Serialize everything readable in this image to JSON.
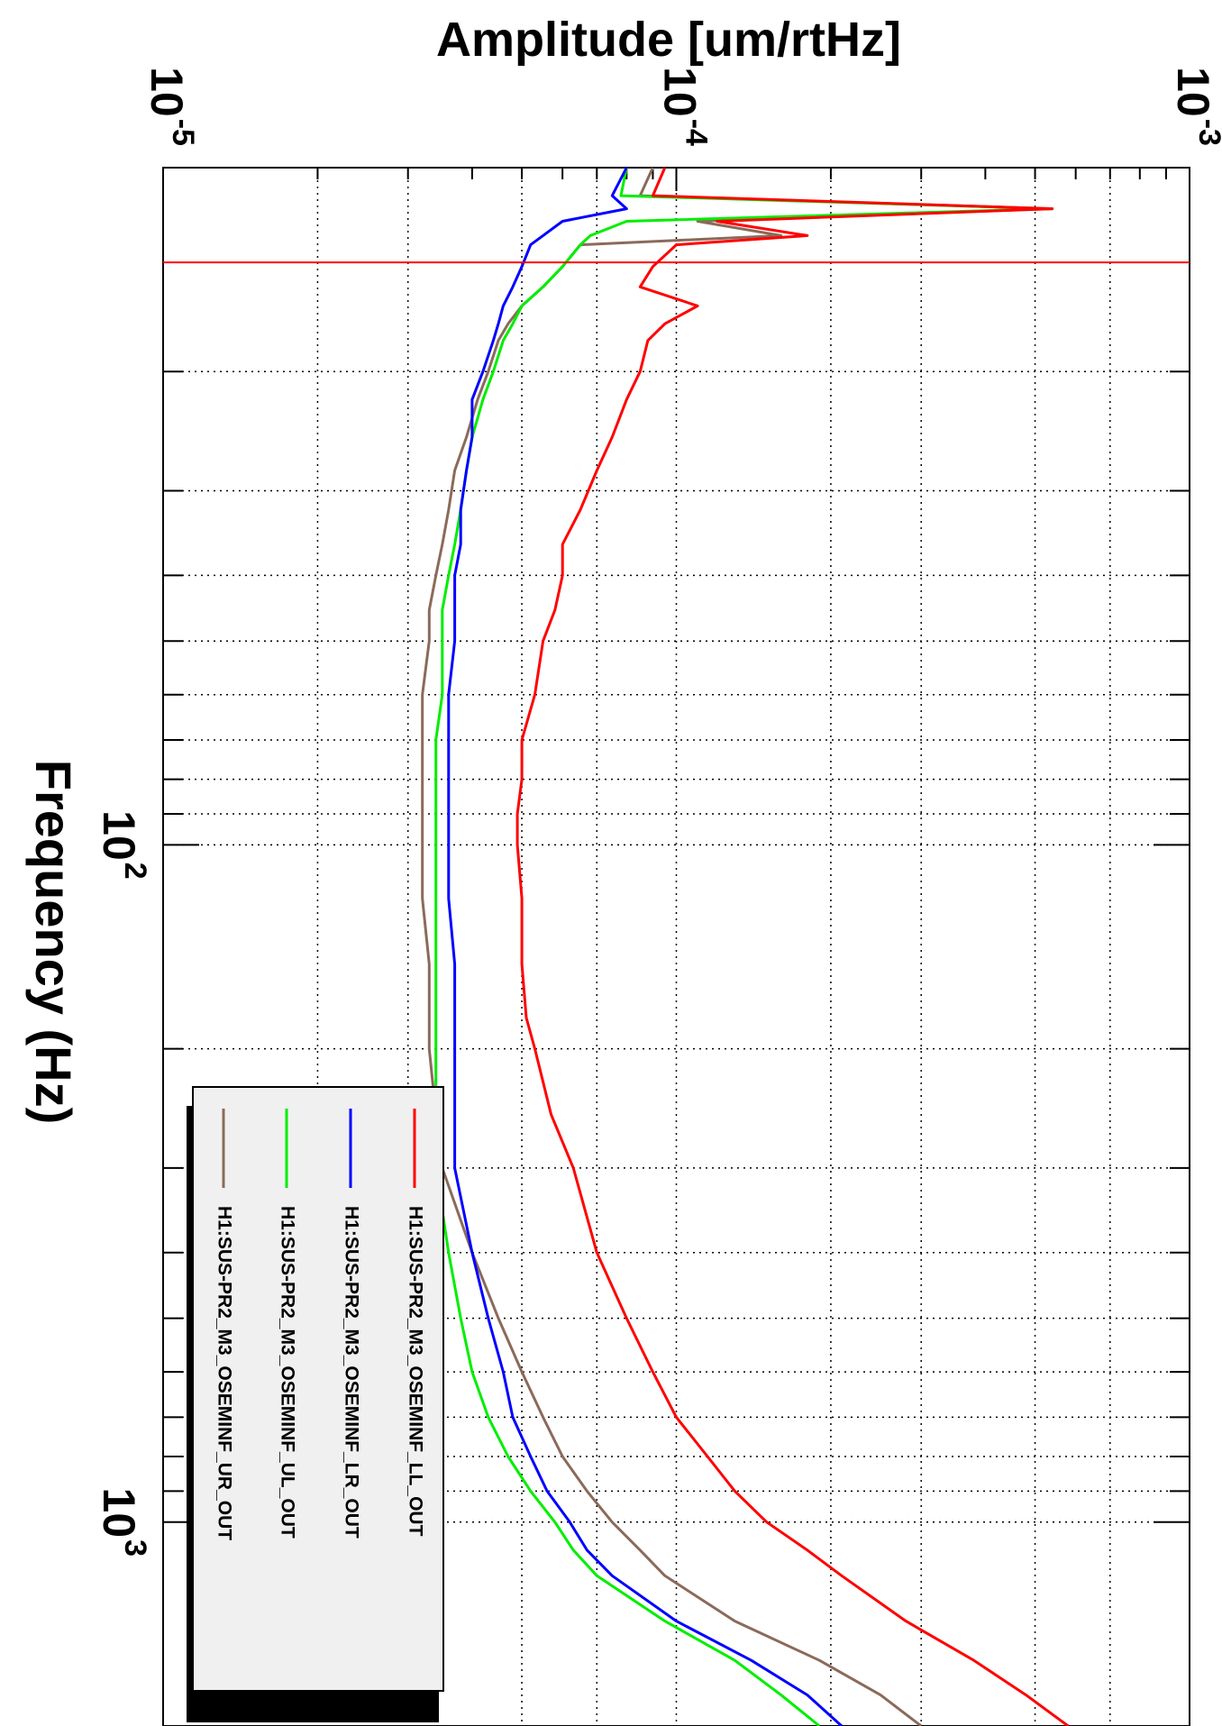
{
  "chart_data": {
    "type": "line",
    "orientation": "rotated-90-clockwise",
    "xlabel": "Frequency (Hz)",
    "ylabel": "Amplitude [um/rtHz]",
    "xscale": "log",
    "yscale": "log",
    "xlim": [
      10,
      2000
    ],
    "ylim": [
      1e-05,
      0.001
    ],
    "grid": true,
    "legend_position": "bottom-right",
    "x_ticks": [
      {
        "value": 100,
        "base": "10",
        "exp": "2"
      },
      {
        "value": 1000,
        "base": "10",
        "exp": "3"
      }
    ],
    "y_ticks": [
      {
        "value": 1e-05,
        "base": "10",
        "exp": "-5"
      },
      {
        "value": 0.0001,
        "base": "10",
        "exp": "-4"
      },
      {
        "value": 0.001,
        "base": "10",
        "exp": "-3"
      }
    ],
    "marker_line": {
      "x": 13.8,
      "color": "#ff0000"
    },
    "series": [
      {
        "name": "H1:SUS-PR2_M3_OSEMINF_LL_OUT",
        "color": "#ff0000",
        "x": [
          10,
          11,
          11.5,
          12,
          12.6,
          13,
          14,
          15,
          16,
          17,
          18,
          20,
          22,
          25,
          28,
          32,
          36,
          40,
          45,
          50,
          60,
          70,
          80,
          90,
          100,
          120,
          150,
          180,
          200,
          250,
          300,
          400,
          500,
          600,
          700,
          800,
          900,
          1000,
          1100,
          1200,
          1400,
          1600,
          1800,
          2000
        ],
        "y": [
          9.5e-05,
          9e-05,
          0.00054,
          0.00012,
          0.00018,
          0.0001,
          9e-05,
          8.5e-05,
          0.00011,
          9.5e-05,
          8.8e-05,
          8.5e-05,
          8e-05,
          7.5e-05,
          7e-05,
          6.5e-05,
          6e-05,
          6e-05,
          5.8e-05,
          5.5e-05,
          5.3e-05,
          5e-05,
          5e-05,
          4.9e-05,
          4.9e-05,
          5e-05,
          5e-05,
          5.1e-05,
          5.3e-05,
          5.7e-05,
          6.3e-05,
          7e-05,
          8e-05,
          9e-05,
          0.0001,
          0.000115,
          0.00013,
          0.00015,
          0.00018,
          0.00021,
          0.00028,
          0.00038,
          0.00048,
          0.00058
        ]
      },
      {
        "name": "H1:SUS-PR2_M3_OSEMINF_LR_OUT",
        "color": "#0000ff",
        "x": [
          10,
          11,
          11.5,
          12,
          12.6,
          13,
          14,
          15,
          16,
          17,
          18,
          20,
          22,
          25,
          28,
          32,
          36,
          40,
          45,
          50,
          60,
          70,
          80,
          90,
          100,
          120,
          150,
          180,
          200,
          250,
          300,
          400,
          500,
          600,
          700,
          800,
          900,
          1000,
          1100,
          1200,
          1400,
          1600,
          1800,
          2000
        ],
        "y": [
          8e-05,
          7.5e-05,
          8e-05,
          6e-05,
          5.5e-05,
          5.2e-05,
          5e-05,
          4.8e-05,
          4.6e-05,
          4.5e-05,
          4.4e-05,
          4.2e-05,
          4e-05,
          4e-05,
          3.9e-05,
          3.8e-05,
          3.8e-05,
          3.7e-05,
          3.7e-05,
          3.7e-05,
          3.6e-05,
          3.6e-05,
          3.6e-05,
          3.6e-05,
          3.6e-05,
          3.6e-05,
          3.7e-05,
          3.7e-05,
          3.7e-05,
          3.7e-05,
          3.7e-05,
          4e-05,
          4.3e-05,
          4.6e-05,
          4.8e-05,
          5.2e-05,
          5.6e-05,
          6.2e-05,
          6.7e-05,
          7.5e-05,
          0.0001,
          0.00014,
          0.00018,
          0.00021
        ]
      },
      {
        "name": "H1:SUS-PR2_M3_OSEMINF_UL_OUT",
        "color": "#00ee00",
        "x": [
          10,
          11,
          11.5,
          12,
          12.6,
          13,
          14,
          15,
          16,
          17,
          18,
          20,
          22,
          25,
          28,
          32,
          36,
          40,
          45,
          50,
          60,
          70,
          80,
          90,
          100,
          120,
          150,
          180,
          200,
          250,
          300,
          400,
          500,
          600,
          700,
          800,
          900,
          1000,
          1100,
          1200,
          1400,
          1600,
          1800,
          2000
        ],
        "y": [
          8e-05,
          7.8e-05,
          0.00054,
          8e-05,
          6.8e-05,
          6.5e-05,
          6e-05,
          5.5e-05,
          5e-05,
          4.8e-05,
          4.6e-05,
          4.4e-05,
          4.2e-05,
          4e-05,
          3.9e-05,
          3.8e-05,
          3.7e-05,
          3.6e-05,
          3.5e-05,
          3.5e-05,
          3.5e-05,
          3.4e-05,
          3.4e-05,
          3.4e-05,
          3.4e-05,
          3.4e-05,
          3.4e-05,
          3.4e-05,
          3.4e-05,
          3.4e-05,
          3.4e-05,
          3.6e-05,
          3.8e-05,
          4e-05,
          4.3e-05,
          4.7e-05,
          5.2e-05,
          5.8e-05,
          6.3e-05,
          7e-05,
          9.5e-05,
          0.00013,
          0.00016,
          0.00019
        ]
      },
      {
        "name": "H1:SUS-PR2_M3_OSEMINF_UR_OUT",
        "color": "#8b6a5a",
        "x": [
          10,
          11,
          11.5,
          12,
          12.6,
          13,
          14,
          15,
          16,
          17,
          18,
          20,
          22,
          25,
          28,
          32,
          36,
          40,
          45,
          50,
          60,
          70,
          80,
          90,
          100,
          120,
          150,
          180,
          200,
          250,
          300,
          400,
          500,
          600,
          700,
          800,
          900,
          1000,
          1100,
          1200,
          1400,
          1600,
          1800,
          2000
        ],
        "y": [
          9e-05,
          8.5e-05,
          0.00054,
          0.00011,
          0.00016,
          6.5e-05,
          6e-05,
          5.5e-05,
          5e-05,
          4.7e-05,
          4.5e-05,
          4.3e-05,
          4.1e-05,
          3.9e-05,
          3.7e-05,
          3.6e-05,
          3.5e-05,
          3.4e-05,
          3.3e-05,
          3.3e-05,
          3.2e-05,
          3.2e-05,
          3.2e-05,
          3.2e-05,
          3.2e-05,
          3.2e-05,
          3.3e-05,
          3.3e-05,
          3.3e-05,
          3.4e-05,
          3.5e-05,
          4e-05,
          4.5e-05,
          5e-05,
          5.5e-05,
          6e-05,
          6.7e-05,
          7.5e-05,
          8.5e-05,
          9.5e-05,
          0.00013,
          0.00019,
          0.00025,
          0.0003
        ]
      }
    ]
  }
}
